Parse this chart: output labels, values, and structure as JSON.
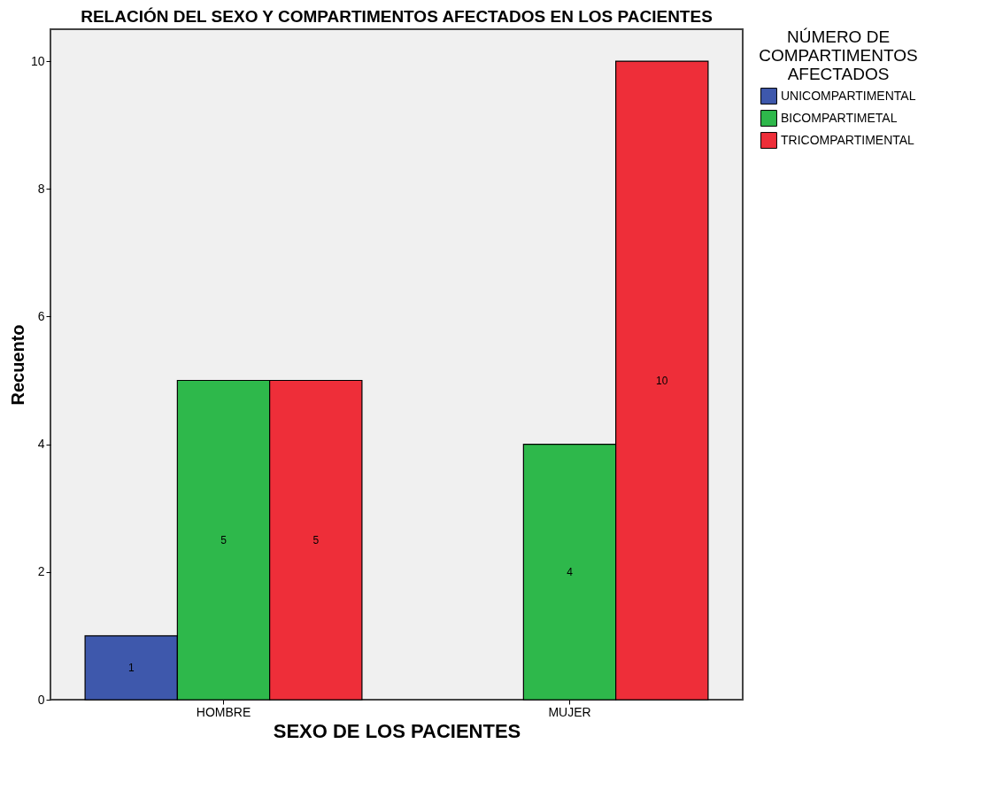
{
  "chart_data": {
    "type": "bar",
    "title": "RELACIÓN DEL SEXO Y COMPARTIMENTOS AFECTADOS EN LOS PACIENTES",
    "xlabel": "SEXO DE LOS PACIENTES",
    "ylabel": "Recuento",
    "legend_title": "NÚMERO DE COMPARTIMENTOS AFECTADOS",
    "categories": [
      "HOMBRE",
      "MUJER"
    ],
    "series": [
      {
        "name": "UNICOMPARTIMENTAL",
        "color": "#3e58ac",
        "values": [
          1,
          null
        ]
      },
      {
        "name": "BICOMPARTIMETAL",
        "color": "#2eb84b",
        "values": [
          5,
          4
        ]
      },
      {
        "name": "TRICOMPARTIMENTAL",
        "color": "#ee2e39",
        "values": [
          5,
          10
        ]
      }
    ],
    "ylim": [
      0,
      10.5
    ],
    "yticks": [
      0,
      2,
      4,
      6,
      8,
      10
    ],
    "grid": false,
    "legend": "right",
    "data_labels": true
  }
}
